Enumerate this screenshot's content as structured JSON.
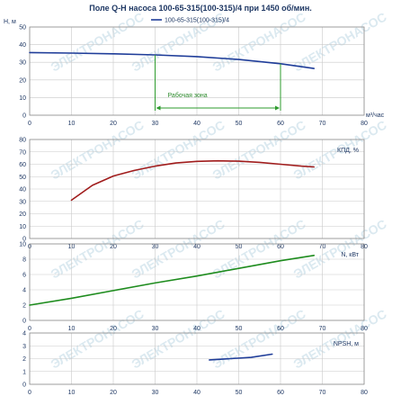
{
  "title": "Поле Q-H насоса 100-65-315(100-315)/4 при 1450 об/мин.",
  "legend": {
    "label": "100-65-315(100-315)/4",
    "color": "#1f3d99",
    "placement": "top-right"
  },
  "watermark": "ЭЛЕКТРОНАСОС",
  "x_axis": {
    "label": "м³/час",
    "range": [
      0,
      80
    ],
    "ticks": [
      0,
      10,
      20,
      30,
      40,
      50,
      60,
      70,
      80
    ]
  },
  "colors": {
    "head": "#1f3d99",
    "efficiency": "#a01c1c",
    "power": "#1e8c1e",
    "npsh": "#1f3d99",
    "zone": "#2e9b2e",
    "axis_text": "#1f3864"
  },
  "chart_data": [
    {
      "type": "line",
      "name": "head",
      "ylabel": "H, м",
      "ylim": [
        0,
        50
      ],
      "yticks": [
        0,
        10,
        20,
        30,
        40,
        50
      ],
      "grid": true,
      "series": [
        {
          "name": "100-65-315(100-315)/4",
          "x": [
            0,
            10,
            20,
            30,
            40,
            50,
            60,
            68
          ],
          "y": [
            35.5,
            35.2,
            34.8,
            34.2,
            33.2,
            31.6,
            29.2,
            26.5
          ]
        }
      ],
      "annotations": [
        {
          "text": "Рабочая зона",
          "x_range": [
            30,
            60
          ]
        }
      ]
    },
    {
      "type": "line",
      "name": "efficiency",
      "ylabel": "КПД, %",
      "ylim": [
        0,
        80
      ],
      "yticks": [
        0,
        10,
        20,
        30,
        40,
        50,
        60,
        70,
        80
      ],
      "grid": true,
      "series": [
        {
          "name": "КПД",
          "x": [
            10,
            15,
            20,
            25,
            30,
            35,
            40,
            45,
            50,
            55,
            60,
            65,
            68
          ],
          "y": [
            31,
            43,
            50.5,
            55,
            58.5,
            61,
            62.3,
            62.8,
            62.5,
            61.5,
            60,
            58.5,
            57.8
          ]
        }
      ]
    },
    {
      "type": "line",
      "name": "power",
      "ylabel": "N, кВт",
      "ylim": [
        0,
        10
      ],
      "yticks": [
        0,
        2,
        4,
        6,
        8,
        10
      ],
      "grid": true,
      "series": [
        {
          "name": "N",
          "x": [
            0,
            10,
            20,
            30,
            40,
            50,
            60,
            68
          ],
          "y": [
            2.0,
            2.9,
            3.9,
            4.9,
            5.8,
            6.8,
            7.8,
            8.5
          ]
        }
      ]
    },
    {
      "type": "line",
      "name": "npsh",
      "ylabel": "NPSH, м",
      "ylim": [
        0,
        4
      ],
      "yticks": [
        0,
        1,
        2,
        3,
        4
      ],
      "grid": true,
      "series": [
        {
          "name": "NPSH",
          "x": [
            43,
            48,
            53,
            58
          ],
          "y": [
            1.9,
            2.0,
            2.1,
            2.35
          ]
        }
      ]
    }
  ]
}
